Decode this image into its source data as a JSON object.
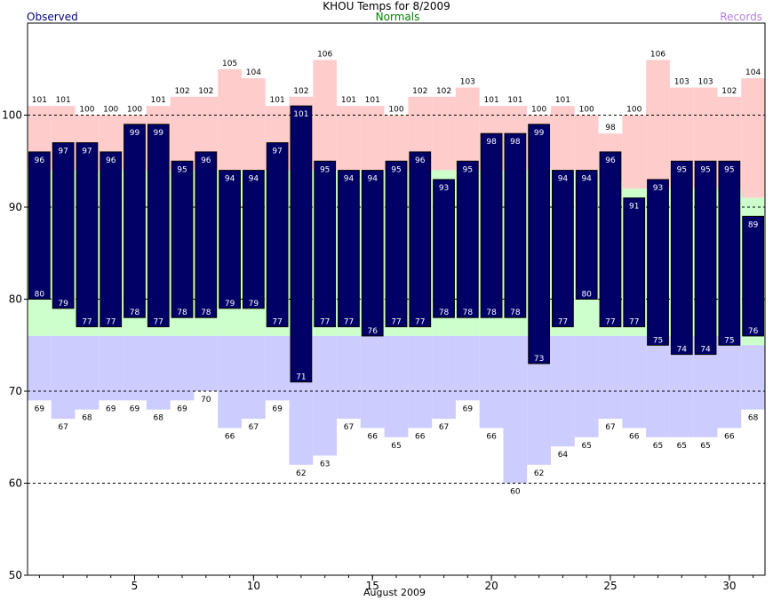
{
  "chart_data": {
    "type": "bar",
    "title": "KHOU Temps for 8/2009",
    "legend": {
      "observed": "Observed",
      "normals": "Normals",
      "records": "Records"
    },
    "xlabel": "August 2009",
    "ylabel": "",
    "ylim": [
      50,
      110
    ],
    "xlim": [
      0.5,
      31.5
    ],
    "y_ticks": [
      50,
      60,
      70,
      80,
      90,
      100
    ],
    "x_ticks": [
      5,
      10,
      15,
      20,
      25,
      30
    ],
    "gridlines": [
      60,
      70,
      80,
      90,
      100
    ],
    "grid": true,
    "days": [
      1,
      2,
      3,
      4,
      5,
      6,
      7,
      8,
      9,
      10,
      11,
      12,
      13,
      14,
      15,
      16,
      17,
      18,
      19,
      20,
      21,
      22,
      23,
      24,
      25,
      26,
      27,
      28,
      29,
      30,
      31
    ],
    "series": [
      {
        "name": "Observed high",
        "values": [
          96,
          97,
          97,
          96,
          99,
          99,
          95,
          96,
          94,
          94,
          97,
          101,
          95,
          94,
          94,
          95,
          96,
          93,
          95,
          98,
          98,
          99,
          94,
          94,
          96,
          91,
          93,
          95,
          95,
          95,
          89
        ]
      },
      {
        "name": "Observed low",
        "values": [
          80,
          79,
          77,
          77,
          78,
          77,
          78,
          78,
          79,
          79,
          77,
          71,
          77,
          77,
          76,
          77,
          77,
          78,
          78,
          78,
          78,
          73,
          77,
          80,
          77,
          77,
          75,
          74,
          74,
          75,
          76
        ]
      },
      {
        "name": "Normal high",
        "values": [
          94,
          94,
          94,
          94,
          94,
          94,
          94,
          94,
          94,
          94,
          94,
          94,
          94,
          94,
          94,
          94,
          94,
          94,
          94,
          94,
          94,
          94,
          94,
          94,
          93,
          92,
          92,
          92,
          92,
          92,
          91
        ]
      },
      {
        "name": "Normal low",
        "values": [
          76,
          76,
          76,
          76,
          76,
          76,
          76,
          76,
          76,
          76,
          76,
          76,
          76,
          76,
          76,
          76,
          76,
          76,
          76,
          76,
          76,
          76,
          76,
          76,
          76,
          76,
          76,
          76,
          76,
          76,
          75
        ]
      },
      {
        "name": "Record high",
        "values": [
          101,
          101,
          100,
          100,
          100,
          101,
          102,
          102,
          105,
          104,
          101,
          102,
          106,
          101,
          101,
          100,
          102,
          102,
          103,
          101,
          101,
          100,
          101,
          100,
          98,
          100,
          106,
          103,
          103,
          102,
          104
        ]
      },
      {
        "name": "Record low",
        "values": [
          69,
          67,
          68,
          69,
          69,
          68,
          69,
          70,
          66,
          67,
          69,
          62,
          63,
          67,
          66,
          65,
          66,
          67,
          69,
          66,
          60,
          62,
          64,
          65,
          67,
          66,
          65,
          65,
          65,
          66,
          68
        ]
      }
    ]
  },
  "colors": {
    "observed": "#000066",
    "observed_label": "#ffffff",
    "normal_band": "#ccffcc",
    "record_high_band": "#ffcccc",
    "record_low_band": "#ccccff",
    "grid": "#000000",
    "observed_text": "#000080",
    "normals_text": "#008000",
    "records_text": "#b57edc"
  }
}
